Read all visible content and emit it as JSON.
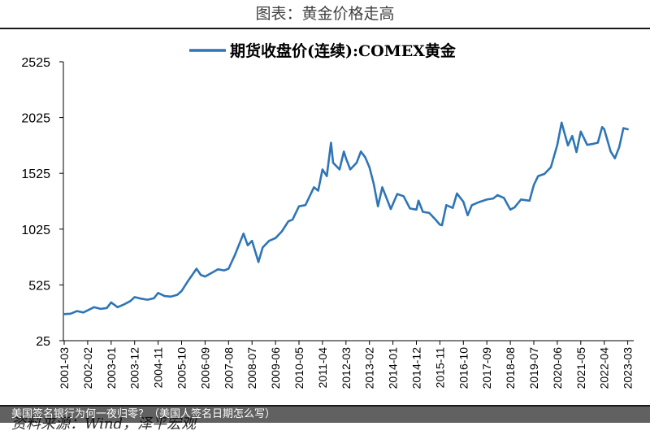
{
  "header": {
    "title": "图表：黄金价格走高"
  },
  "source": {
    "text": "资料来源：Wind，泽平宏观"
  },
  "overlay": {
    "caption": "美国签名银行为何一夜归零？（美国人签名日期怎么写）"
  },
  "chart_data": {
    "type": "line",
    "title": "",
    "xlabel": "",
    "ylabel": "",
    "ylim": [
      25,
      2525
    ],
    "yticks": [
      25,
      525,
      1025,
      1525,
      2025,
      2525
    ],
    "ytick_labels": [
      "25",
      "525",
      "1025",
      "1525",
      "2025",
      "2525"
    ],
    "xticks": [
      "2001-03",
      "2002-02",
      "2003-01",
      "2003-12",
      "2004-11",
      "2005-10",
      "2006-09",
      "2007-08",
      "2008-07",
      "2009-06",
      "2010-05",
      "2011-04",
      "2012-03",
      "2013-02",
      "2014-01",
      "2014-12",
      "2015-11",
      "2016-10",
      "2017-09",
      "2018-08",
      "2019-07",
      "2020-06",
      "2021-05",
      "2022-04",
      "2023-03"
    ],
    "legend_position": "top",
    "grid": false,
    "series": [
      {
        "name": "期货收盘价(连续):COMEX黄金",
        "color": "#2e75b6",
        "x": [
          "2001-03",
          "2001-06",
          "2001-09",
          "2001-12",
          "2002-02",
          "2002-05",
          "2002-08",
          "2002-11",
          "2003-01",
          "2003-04",
          "2003-07",
          "2003-10",
          "2003-12",
          "2004-03",
          "2004-06",
          "2004-09",
          "2004-11",
          "2005-02",
          "2005-05",
          "2005-08",
          "2005-10",
          "2006-01",
          "2006-05",
          "2006-07",
          "2006-09",
          "2006-12",
          "2007-03",
          "2007-06",
          "2007-08",
          "2007-11",
          "2008-03",
          "2008-05",
          "2008-07",
          "2008-10",
          "2008-12",
          "2009-03",
          "2009-06",
          "2009-09",
          "2009-12",
          "2010-02",
          "2010-05",
          "2010-08",
          "2010-12",
          "2011-02",
          "2011-04",
          "2011-06",
          "2011-08",
          "2011-09",
          "2011-12",
          "2012-02",
          "2012-03",
          "2012-05",
          "2012-08",
          "2012-10",
          "2012-12",
          "2013-02",
          "2013-04",
          "2013-06",
          "2013-08",
          "2013-12",
          "2014-01",
          "2014-03",
          "2014-06",
          "2014-09",
          "2014-12",
          "2015-01",
          "2015-03",
          "2015-06",
          "2015-09",
          "2015-11",
          "2015-12",
          "2016-02",
          "2016-05",
          "2016-07",
          "2016-10",
          "2016-12",
          "2017-02",
          "2017-05",
          "2017-09",
          "2017-12",
          "2018-02",
          "2018-05",
          "2018-08",
          "2018-10",
          "2019-01",
          "2019-05",
          "2019-07",
          "2019-09",
          "2019-12",
          "2020-03",
          "2020-06",
          "2020-08",
          "2020-11",
          "2021-01",
          "2021-03",
          "2021-05",
          "2021-08",
          "2021-11",
          "2022-01",
          "2022-03",
          "2022-04",
          "2022-07",
          "2022-09",
          "2022-11",
          "2023-01",
          "2023-03"
        ],
        "values": [
          263,
          267,
          290,
          278,
          297,
          325,
          310,
          318,
          368,
          325,
          350,
          380,
          416,
          402,
          392,
          405,
          453,
          425,
          420,
          436,
          470,
          560,
          670,
          615,
          600,
          632,
          665,
          655,
          670,
          795,
          985,
          880,
          920,
          730,
          860,
          920,
          945,
          1005,
          1095,
          1110,
          1230,
          1240,
          1400,
          1370,
          1560,
          1500,
          1800,
          1620,
          1560,
          1720,
          1660,
          1560,
          1620,
          1720,
          1670,
          1580,
          1430,
          1230,
          1400,
          1205,
          1250,
          1340,
          1320,
          1210,
          1200,
          1280,
          1180,
          1170,
          1110,
          1065,
          1060,
          1240,
          1215,
          1345,
          1270,
          1150,
          1240,
          1265,
          1290,
          1300,
          1330,
          1305,
          1200,
          1220,
          1290,
          1280,
          1420,
          1500,
          1520,
          1580,
          1780,
          1980,
          1775,
          1860,
          1715,
          1900,
          1780,
          1790,
          1800,
          1940,
          1920,
          1720,
          1660,
          1760,
          1930,
          1920
        ]
      }
    ]
  }
}
